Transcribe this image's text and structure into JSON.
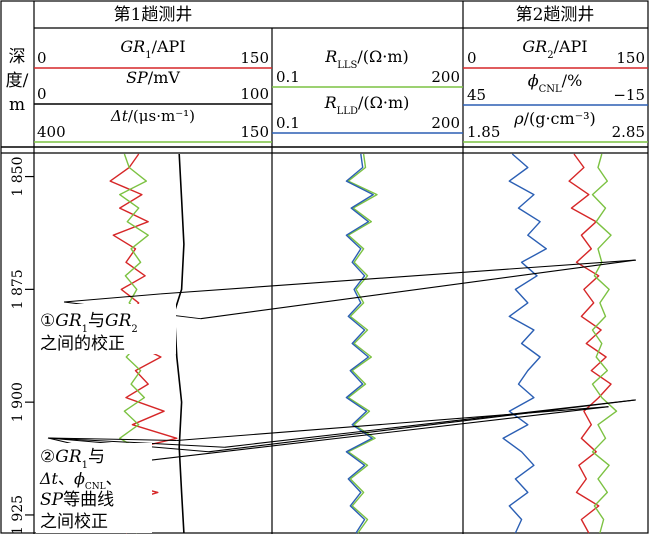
{
  "header": {
    "depth_label": [
      "深",
      "度/",
      "m"
    ],
    "well1_title": "第1趟测井",
    "well2_title": "第2趟测井"
  },
  "tracks": {
    "gr1": {
      "name_main": "GR",
      "name_sub": "1",
      "unit": "/API",
      "left": "0",
      "right": "150",
      "color": "#d62728"
    },
    "sp": {
      "name_main": "SP",
      "unit": "/mV",
      "left": "0",
      "right": "100",
      "color": "#000000"
    },
    "dt": {
      "name_main": "Δt",
      "unit": "/(μs·m⁻¹)",
      "left": "400",
      "right": "150",
      "color": "#7cc242"
    },
    "rlls": {
      "name_main": "R",
      "name_sub": "LLS",
      "unit": "/(Ω·m)",
      "left": "0.1",
      "right": "200",
      "color": "#7cc242"
    },
    "rlld": {
      "name_main": "R",
      "name_sub": "LLD",
      "unit": "/(Ω·m)",
      "left": "0.1",
      "right": "200",
      "color": "#2b5fb4"
    },
    "gr2": {
      "name_main": "GR",
      "name_sub": "2",
      "unit": "/API",
      "left": "0",
      "right": "150",
      "color": "#d62728"
    },
    "cnl": {
      "name_main": "ϕ",
      "name_sub": "CNL",
      "unit": "/%",
      "left": "45",
      "right": "−15",
      "color": "#2b5fb4"
    },
    "den": {
      "name_main": "ρ",
      "unit": "/(g·cm⁻³)",
      "left": "1.85",
      "right": "2.85",
      "color": "#7cc242"
    }
  },
  "chart_data": {
    "type": "line",
    "ylabel": "深度/m",
    "ylim": [
      1845,
      1929
    ],
    "yticks": [
      "1 850",
      "1 875",
      "1 900",
      "1 925"
    ],
    "ytick_values": [
      1850,
      1875,
      1900,
      1925
    ],
    "annotations": [
      {
        "line1_prefix": "①",
        "line1_main": "GR",
        "line1_sub": "1",
        "line1_mid": "与",
        "line1_main2": "GR",
        "line1_sub2": "2",
        "line2": "之间的校正"
      },
      {
        "line1_prefix": "②",
        "line1_main": "GR",
        "line1_sub": "1",
        "line1_mid": "与",
        "line2_a": "Δt",
        "line2_b": "、",
        "line2_c": "ϕ",
        "line2_sub": "CNL",
        "line2_d": "、",
        "line3_a": "SP",
        "line3_b": "等曲线",
        "line4": "之间校正"
      }
    ],
    "series": [
      {
        "name": "GR1",
        "track": 1,
        "xlim": [
          0,
          150
        ],
        "depth": [
          1845,
          1848,
          1851,
          1854,
          1857,
          1860,
          1863,
          1866,
          1869,
          1872,
          1875,
          1878,
          1881,
          1884,
          1887,
          1890,
          1893,
          1896,
          1899,
          1902,
          1905,
          1908,
          1911,
          1914,
          1917,
          1920,
          1923,
          1926,
          1929
        ],
        "values": [
          66,
          60,
          48,
          68,
          54,
          72,
          50,
          64,
          58,
          70,
          55,
          66,
          60,
          75,
          62,
          80,
          64,
          72,
          58,
          82,
          62,
          90,
          54,
          70,
          45,
          78,
          50,
          66,
          58
        ]
      },
      {
        "name": "SP",
        "track": 1,
        "xlim": [
          0,
          100
        ],
        "depth": [
          1845,
          1855,
          1865,
          1875,
          1880,
          1890,
          1900,
          1910,
          1920,
          1929
        ],
        "values": [
          61,
          62,
          63,
          62,
          59,
          60,
          62,
          61,
          62,
          63
        ]
      },
      {
        "name": "Δt",
        "track": 1,
        "xlim": [
          400,
          150
        ],
        "depth": [
          1845,
          1848,
          1851,
          1854,
          1857,
          1860,
          1863,
          1866,
          1869,
          1872,
          1875,
          1878,
          1881,
          1884,
          1887,
          1890,
          1893,
          1896,
          1899,
          1902,
          1905,
          1908,
          1911,
          1914,
          1917,
          1920,
          1923,
          1926,
          1929
        ],
        "values": [
          305,
          300,
          282,
          310,
          290,
          302,
          280,
          298,
          288,
          304,
          292,
          300,
          286,
          296,
          290,
          303,
          288,
          298,
          284,
          305,
          290,
          310,
          285,
          300,
          278,
          296,
          288,
          302,
          292
        ]
      },
      {
        "name": "RLLS",
        "track": 2,
        "xlim": [
          0.1,
          200
        ],
        "depth": [
          1845,
          1848,
          1851,
          1854,
          1857,
          1860,
          1863,
          1866,
          1869,
          1872,
          1875,
          1878,
          1881,
          1884,
          1887,
          1890,
          1893,
          1896,
          1899,
          1902,
          1905,
          1908,
          1911,
          1914,
          1917,
          1920,
          1923,
          1926,
          1929
        ],
        "values": [
          96,
          98,
          80,
          110,
          85,
          104,
          80,
          96,
          86,
          100,
          88,
          96,
          82,
          100,
          86,
          104,
          84,
          98,
          80,
          102,
          86,
          108,
          80,
          100,
          82,
          96,
          84,
          100,
          90
        ]
      },
      {
        "name": "RLLD",
        "track": 2,
        "xlim": [
          0.1,
          200
        ],
        "depth": [
          1845,
          1848,
          1851,
          1854,
          1857,
          1860,
          1863,
          1866,
          1869,
          1872,
          1875,
          1878,
          1881,
          1884,
          1887,
          1890,
          1893,
          1896,
          1899,
          1902,
          1905,
          1908,
          1911,
          1914,
          1917,
          1920,
          1923,
          1926,
          1929
        ],
        "values": [
          93,
          95,
          78,
          106,
          83,
          101,
          78,
          93,
          84,
          97,
          86,
          93,
          80,
          97,
          84,
          101,
          82,
          95,
          78,
          99,
          84,
          105,
          78,
          97,
          80,
          93,
          82,
          97,
          88
        ]
      },
      {
        "name": "GR2",
        "track": 3,
        "xlim": [
          0,
          150
        ],
        "depth": [
          1845,
          1848,
          1851,
          1854,
          1857,
          1860,
          1863,
          1866,
          1869,
          1872,
          1875,
          1878,
          1881,
          1884,
          1887,
          1890,
          1893,
          1896,
          1899,
          1902,
          1905,
          1908,
          1911,
          1914,
          1917,
          1920,
          1923,
          1926,
          1929
        ],
        "values": [
          90,
          98,
          86,
          102,
          88,
          108,
          96,
          104,
          92,
          110,
          98,
          106,
          96,
          112,
          100,
          116,
          104,
          120,
          110,
          98,
          104,
          96,
          108,
          94,
          100,
          92,
          110,
          96,
          102
        ]
      },
      {
        "name": "ϕCNL",
        "track": 3,
        "xlim": [
          45,
          -15
        ],
        "depth": [
          1845,
          1848,
          1851,
          1854,
          1857,
          1860,
          1863,
          1866,
          1869,
          1872,
          1875,
          1878,
          1881,
          1884,
          1887,
          1890,
          1893,
          1896,
          1899,
          1902,
          1905,
          1908,
          1911,
          1914,
          1917,
          1920,
          1923,
          1926,
          1929
        ],
        "values": [
          29,
          24,
          30,
          22,
          27,
          20,
          24,
          18,
          26,
          21,
          28,
          24,
          30,
          22,
          26,
          20,
          24,
          27,
          22,
          30,
          24,
          32,
          26,
          22,
          28,
          24,
          30,
          26,
          28
        ]
      },
      {
        "name": "ρ",
        "track": 3,
        "xlim": [
          1.85,
          2.85
        ],
        "depth": [
          1845,
          1848,
          1851,
          1854,
          1857,
          1860,
          1863,
          1866,
          1869,
          1872,
          1875,
          1878,
          1881,
          1884,
          1887,
          1890,
          1893,
          1896,
          1899,
          1902,
          1905,
          1908,
          1911,
          1914,
          1917,
          1920,
          1923,
          1926,
          1929
        ],
        "values": [
          2.6,
          2.58,
          2.63,
          2.55,
          2.62,
          2.57,
          2.65,
          2.58,
          2.6,
          2.56,
          2.64,
          2.59,
          2.62,
          2.55,
          2.6,
          2.57,
          2.63,
          2.55,
          2.6,
          2.68,
          2.58,
          2.62,
          2.55,
          2.64,
          2.58,
          2.63,
          2.56,
          2.61,
          2.59
        ]
      }
    ],
    "correlation_lines": [
      {
        "group": 1,
        "from_track": 1,
        "from": [
          105,
          1881.5
        ],
        "to_track": 3,
        "to": [
          140,
          1868.5
        ]
      },
      {
        "group": 1,
        "from_track": 1,
        "from": [
          80,
          1876
        ],
        "to_track": 3,
        "to": [
          140,
          1868.5
        ]
      },
      {
        "group": 2,
        "from_track": 1,
        "from": [
          120,
          1910
        ],
        "to_track": 3,
        "to": [
          140,
          1899.5
        ]
      },
      {
        "group": 2,
        "from_track": 1,
        "from": [
          110,
          1911
        ],
        "to_track": 3,
        "to": [
          140,
          1899.5
        ]
      },
      {
        "group": 2,
        "from_track": 1,
        "from": [
          90,
          1908.5
        ],
        "to_track": 3,
        "to": [
          118,
          1901
        ]
      },
      {
        "group": 2,
        "from_track": 1,
        "from": [
          70,
          1913
        ],
        "to_track": 3,
        "to": [
          118,
          1901
        ]
      }
    ]
  }
}
